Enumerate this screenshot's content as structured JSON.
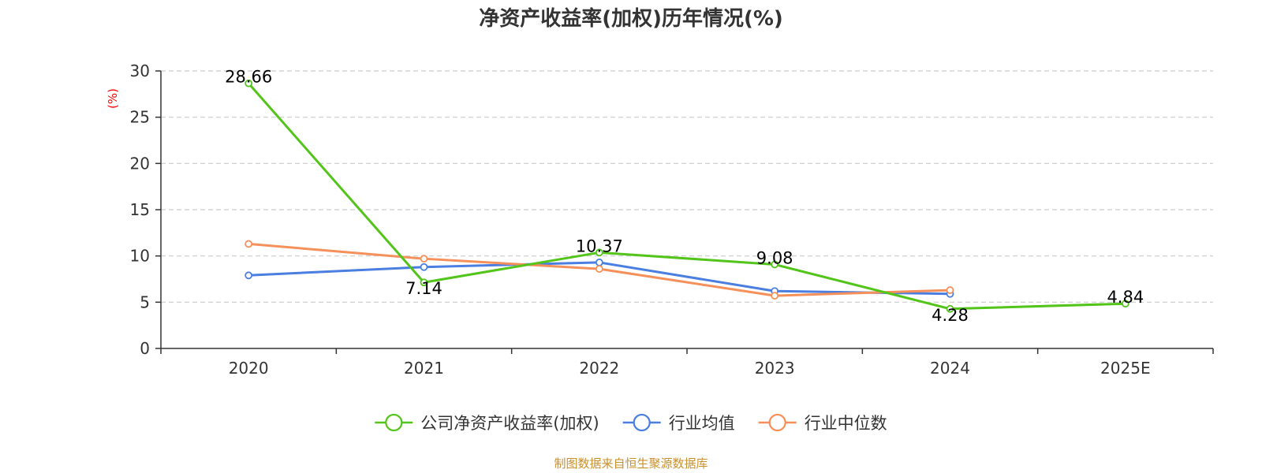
{
  "chart_data": {
    "type": "line",
    "title": "净资产收益率(加权)历年情况(%)",
    "ylabel": "(%)",
    "xlabel": "",
    "categories": [
      "2020",
      "2021",
      "2022",
      "2023",
      "2024",
      "2025E"
    ],
    "ylim": [
      0,
      30
    ],
    "yticks": [
      0,
      5,
      10,
      15,
      20,
      25,
      30
    ],
    "grid": true,
    "legend_position": "bottom-center",
    "series": [
      {
        "name": "公司净资产收益率(加权)",
        "color": "#52c41a",
        "values": [
          28.66,
          7.14,
          10.37,
          9.08,
          4.28,
          4.84
        ],
        "show_labels": true
      },
      {
        "name": "行业均值",
        "color": "#4a7ee0",
        "values": [
          7.9,
          8.8,
          9.3,
          6.2,
          5.9,
          null
        ],
        "show_labels": false
      },
      {
        "name": "行业中位数",
        "color": "#f5905a",
        "values": [
          11.3,
          9.7,
          8.6,
          5.7,
          6.3,
          null
        ],
        "show_labels": false
      }
    ]
  },
  "source": "制图数据来自恒生聚源数据库",
  "colors": {
    "ylabel": "#ff0000",
    "source": "#c8902c",
    "axis": "#333333",
    "grid": "#cccccc"
  }
}
